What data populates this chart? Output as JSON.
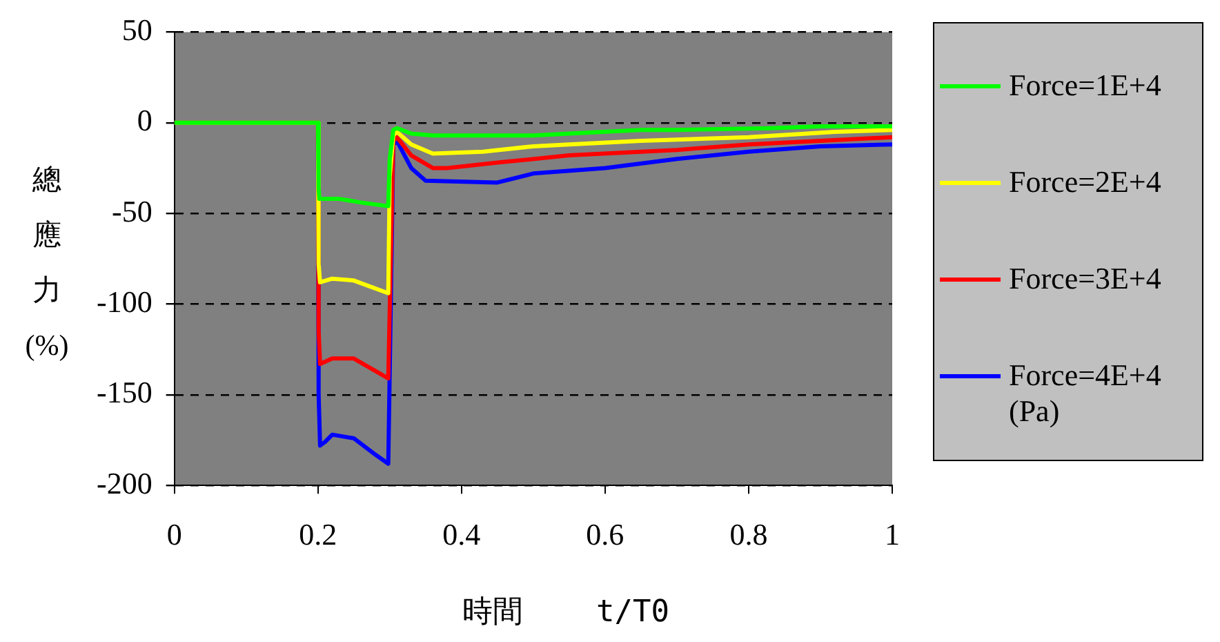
{
  "chart_data": {
    "type": "line",
    "xlabel": "時間    t/T0",
    "ylabel": "總應力 (%)",
    "legend_title": "(Pa)",
    "xlim": [
      0,
      1
    ],
    "xticks": [
      0,
      0.2,
      0.4,
      0.6,
      0.8,
      1
    ],
    "ylim": [
      -200,
      50
    ],
    "yticks": [
      -200,
      -150,
      -100,
      -50,
      0,
      50
    ],
    "grid": "y",
    "line_style": "solid",
    "marker": "none",
    "legend": "right",
    "series": [
      {
        "name": "Force=1E+4",
        "color": "#00ff00",
        "x": [
          0,
          0.2,
          0.201,
          0.202,
          0.23,
          0.26,
          0.298,
          0.3,
          0.305,
          0.31,
          0.33,
          0.36,
          0.4,
          0.5,
          0.55,
          0.65,
          0.7,
          0.83,
          0.9,
          1
        ],
        "values": [
          0,
          0,
          -36,
          -42,
          -42,
          -44,
          -46,
          -20,
          -4,
          -3,
          -6,
          -7,
          -7,
          -7,
          -6,
          -4,
          -4,
          -3,
          -2,
          -2
        ]
      },
      {
        "name": "Force=2E+4",
        "color": "#ffff00",
        "x": [
          0,
          0.2,
          0.201,
          0.203,
          0.22,
          0.25,
          0.298,
          0.3,
          0.305,
          0.31,
          0.33,
          0.36,
          0.43,
          0.5,
          0.55,
          0.65,
          0.8,
          0.92,
          1
        ],
        "values": [
          0,
          0,
          -78,
          -88,
          -86,
          -87,
          -94,
          -30,
          -7,
          -5,
          -12,
          -17,
          -16,
          -13,
          -12,
          -10,
          -8,
          -5,
          -4
        ]
      },
      {
        "name": "Force=3E+4",
        "color": "#ff0000",
        "x": [
          0,
          0.2,
          0.201,
          0.203,
          0.22,
          0.25,
          0.298,
          0.305,
          0.31,
          0.33,
          0.36,
          0.38,
          0.45,
          0.55,
          0.7,
          0.8,
          0.9,
          1
        ],
        "values": [
          0,
          0,
          -115,
          -133,
          -130,
          -130,
          -141,
          -10,
          -8,
          -18,
          -25,
          -25,
          -22,
          -18,
          -15,
          -12,
          -10,
          -8
        ]
      },
      {
        "name": "Force=4E+4",
        "color": "#0000ff",
        "x": [
          0,
          0.2,
          0.201,
          0.203,
          0.21,
          0.22,
          0.25,
          0.28,
          0.298,
          0.305,
          0.31,
          0.33,
          0.35,
          0.45,
          0.5,
          0.6,
          0.7,
          0.8,
          0.9,
          1
        ],
        "values": [
          0,
          0,
          -150,
          -178,
          -176,
          -172,
          -174,
          -183,
          -188,
          -12,
          -10,
          -25,
          -32,
          -33,
          -28,
          -25,
          -20,
          -16,
          -13,
          -12
        ]
      }
    ]
  }
}
